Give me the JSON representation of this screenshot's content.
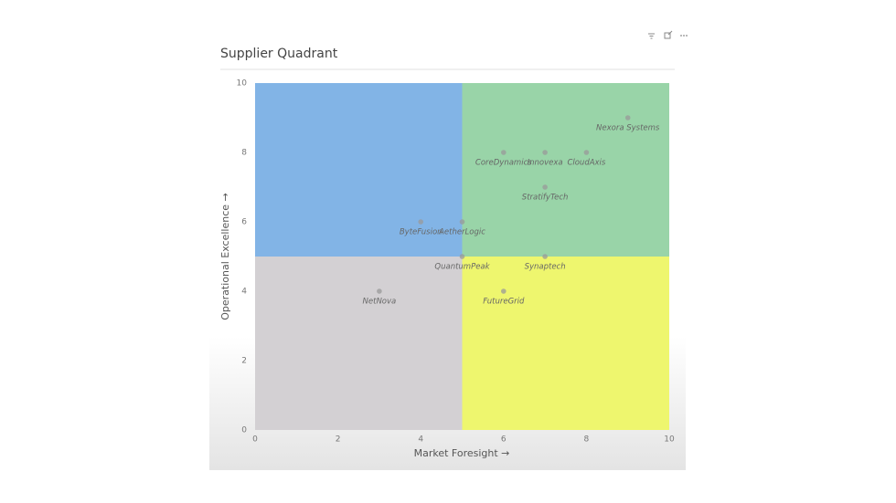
{
  "chart_data": {
    "type": "scatter",
    "title": "Supplier Quadrant",
    "x_label": "Market Foresight →",
    "y_label": "Operational Excellence →",
    "xlim": [
      0,
      10
    ],
    "ylim": [
      0,
      10
    ],
    "xticks": [
      0,
      2,
      4,
      6,
      8,
      10
    ],
    "yticks": [
      0,
      2,
      4,
      6,
      8,
      10
    ],
    "quadrant_colors": {
      "top_left": "#82b4e6",
      "top_right": "#99d4a8",
      "bottom_left": "#d3d0d3",
      "bottom_right": "#eef66e"
    },
    "point_color": "#9a9a9a",
    "labels": [
      "Nexora Systems",
      "CoreDynamics",
      "Innovexa",
      "CloudAxis",
      "StratifyTech",
      "ByteFusion",
      "AetherLogic",
      "QuantumPeak",
      "Synaptech",
      "NetNova",
      "FutureGrid"
    ],
    "x": [
      9,
      6,
      7,
      8,
      7,
      4,
      5,
      5,
      7,
      3,
      6
    ],
    "values": [
      9,
      8,
      8,
      8,
      7,
      6,
      6,
      5,
      5,
      4,
      4
    ]
  }
}
